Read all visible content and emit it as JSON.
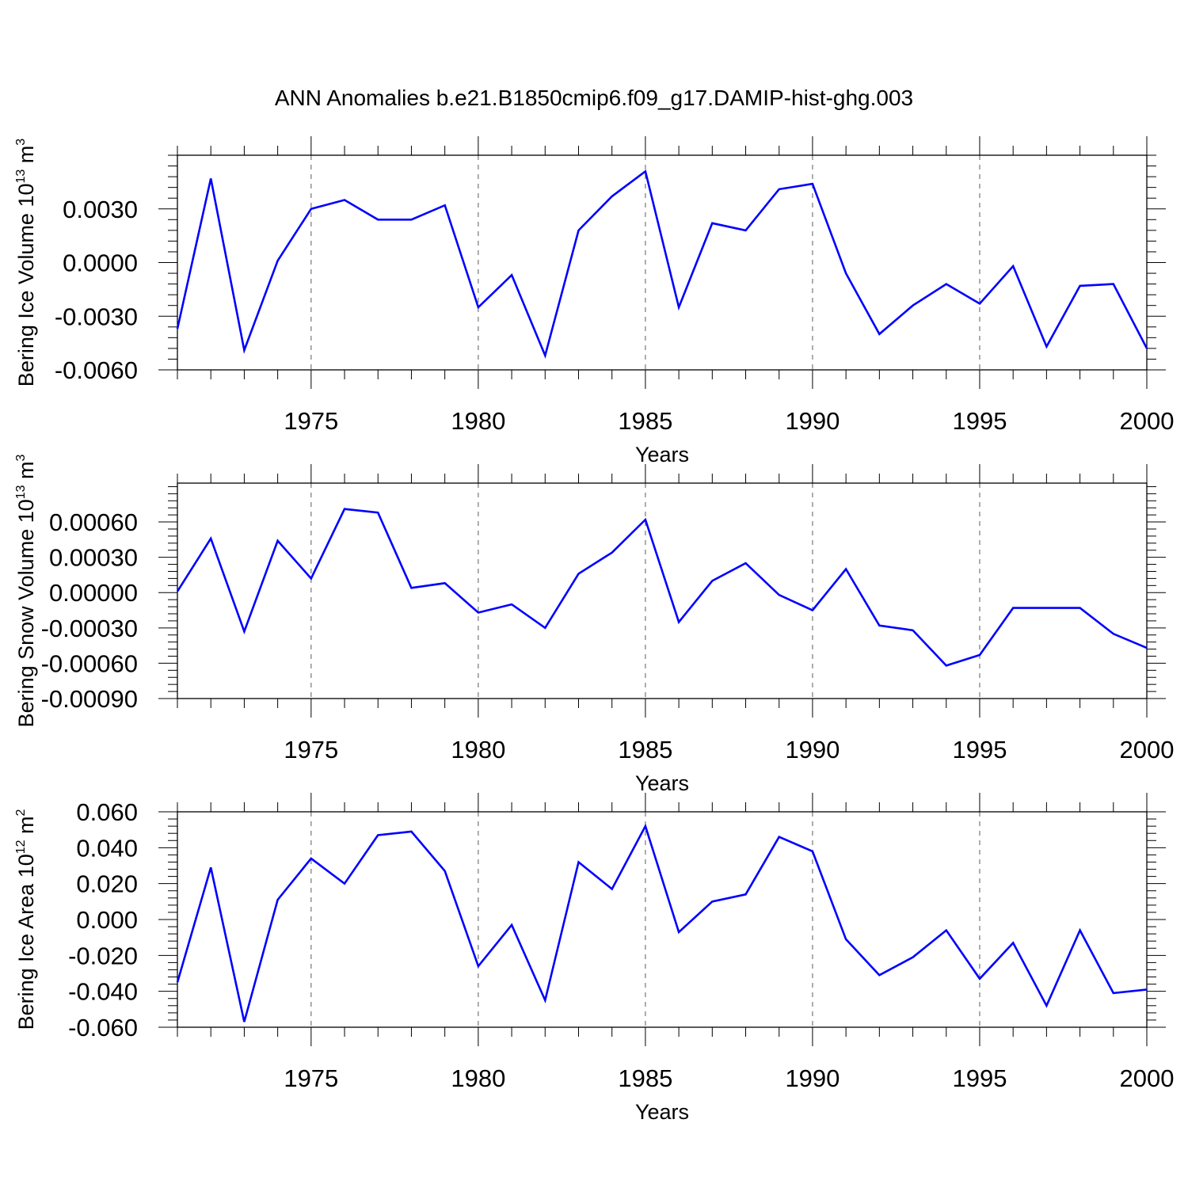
{
  "title": "ANN Anomalies b.e21.B1850cmip6.f09_g17.DAMIP-hist-ghg.003",
  "colors": {
    "series": "#0000ff",
    "grid": "#777777",
    "axis": "#000000"
  },
  "chart_data": [
    {
      "type": "line",
      "title": "ANN Anomalies b.e21.B1850cmip6.f09_g17.DAMIP-hist-ghg.003",
      "xlabel": "Years",
      "ylabel": {
        "text": "Bering Ice Volume 10",
        "sup": "13",
        "unit": " m",
        "unit_sup": "3"
      },
      "xlim": [
        1971,
        2000
      ],
      "ylim": [
        -0.006,
        0.006
      ],
      "xticks": [
        1975,
        1980,
        1985,
        1990,
        1995,
        2000
      ],
      "xtick_labels": [
        "1975",
        "1980",
        "1985",
        "1990",
        "1995",
        "2000"
      ],
      "yticks": [
        0.003,
        0.0,
        -0.003,
        -0.006
      ],
      "ytick_labels": [
        "0.0030",
        "0.0000",
        "-0.0030",
        "-0.0060"
      ],
      "grid": "vertical-dashed",
      "x": [
        1971,
        1972,
        1973,
        1974,
        1975,
        1976,
        1977,
        1978,
        1979,
        1980,
        1981,
        1982,
        1983,
        1984,
        1985,
        1986,
        1987,
        1988,
        1989,
        1990,
        1991,
        1992,
        1993,
        1994,
        1995,
        1996,
        1997,
        1998,
        1999,
        2000
      ],
      "values": [
        -0.0037,
        0.0047,
        -0.0049,
        0.0001,
        0.003,
        0.0035,
        0.0024,
        0.0024,
        0.0032,
        -0.0025,
        -0.0007,
        -0.0052,
        0.0018,
        0.0037,
        0.0051,
        -0.0025,
        0.0022,
        0.0018,
        0.0041,
        0.0044,
        -0.0006,
        -0.004,
        -0.0024,
        -0.0012,
        -0.0023,
        -0.0002,
        -0.0047,
        -0.0013,
        -0.0012,
        -0.0048
      ]
    },
    {
      "type": "line",
      "xlabel": "Years",
      "ylabel": {
        "text": "Bering Snow Volume 10",
        "sup": "13",
        "unit": " m",
        "unit_sup": "3"
      },
      "xlim": [
        1971,
        2000
      ],
      "ylim": [
        -0.0009,
        0.00093
      ],
      "xticks": [
        1975,
        1980,
        1985,
        1990,
        1995,
        2000
      ],
      "xtick_labels": [
        "1975",
        "1980",
        "1985",
        "1990",
        "1995",
        "2000"
      ],
      "yticks": [
        0.0006,
        0.0003,
        0.0,
        -0.0003,
        -0.0006,
        -0.0009
      ],
      "ytick_labels": [
        "0.00060",
        "0.00030",
        "0.00000",
        "-0.00030",
        "-0.00060",
        "-0.00090"
      ],
      "grid": "vertical-dashed",
      "x": [
        1971,
        1972,
        1973,
        1974,
        1975,
        1976,
        1977,
        1978,
        1979,
        1980,
        1981,
        1982,
        1983,
        1984,
        1985,
        1986,
        1987,
        1988,
        1989,
        1990,
        1991,
        1992,
        1993,
        1994,
        1995,
        1996,
        1997,
        1998,
        1999,
        2000
      ],
      "values": [
        1e-05,
        0.00046,
        -0.00033,
        0.00044,
        0.00012,
        0.00071,
        0.00068,
        4e-05,
        8e-05,
        -0.00017,
        -0.0001,
        -0.0003,
        0.00016,
        0.00034,
        0.00062,
        -0.00025,
        0.0001,
        0.00025,
        -2e-05,
        -0.00015,
        0.0002,
        -0.00028,
        -0.00032,
        -0.00062,
        -0.00053,
        -0.00013,
        -0.00013,
        -0.00013,
        -0.00035,
        -0.00047
      ]
    },
    {
      "type": "line",
      "xlabel": "Years",
      "ylabel": {
        "text": "Bering Ice Area 10",
        "sup": "12",
        "unit": " m",
        "unit_sup": "2"
      },
      "xlim": [
        1971,
        2000
      ],
      "ylim": [
        -0.06,
        0.06
      ],
      "xticks": [
        1975,
        1980,
        1985,
        1990,
        1995,
        2000
      ],
      "xtick_labels": [
        "1975",
        "1980",
        "1985",
        "1990",
        "1995",
        "2000"
      ],
      "yticks": [
        0.06,
        0.04,
        0.02,
        0.0,
        -0.02,
        -0.04,
        -0.06
      ],
      "ytick_labels": [
        "0.060",
        "0.040",
        "0.020",
        "0.000",
        "-0.020",
        "-0.040",
        "-0.060"
      ],
      "grid": "vertical-dashed",
      "x": [
        1971,
        1972,
        1973,
        1974,
        1975,
        1976,
        1977,
        1978,
        1979,
        1980,
        1981,
        1982,
        1983,
        1984,
        1985,
        1986,
        1987,
        1988,
        1989,
        1990,
        1991,
        1992,
        1993,
        1994,
        1995,
        1996,
        1997,
        1998,
        1999,
        2000
      ],
      "values": [
        -0.035,
        0.029,
        -0.057,
        0.011,
        0.034,
        0.02,
        0.047,
        0.049,
        0.027,
        -0.026,
        -0.003,
        -0.045,
        0.032,
        0.017,
        0.052,
        -0.007,
        0.01,
        0.014,
        0.046,
        0.038,
        -0.011,
        -0.031,
        -0.021,
        -0.006,
        -0.033,
        -0.013,
        -0.048,
        -0.006,
        -0.041,
        -0.039
      ]
    }
  ]
}
